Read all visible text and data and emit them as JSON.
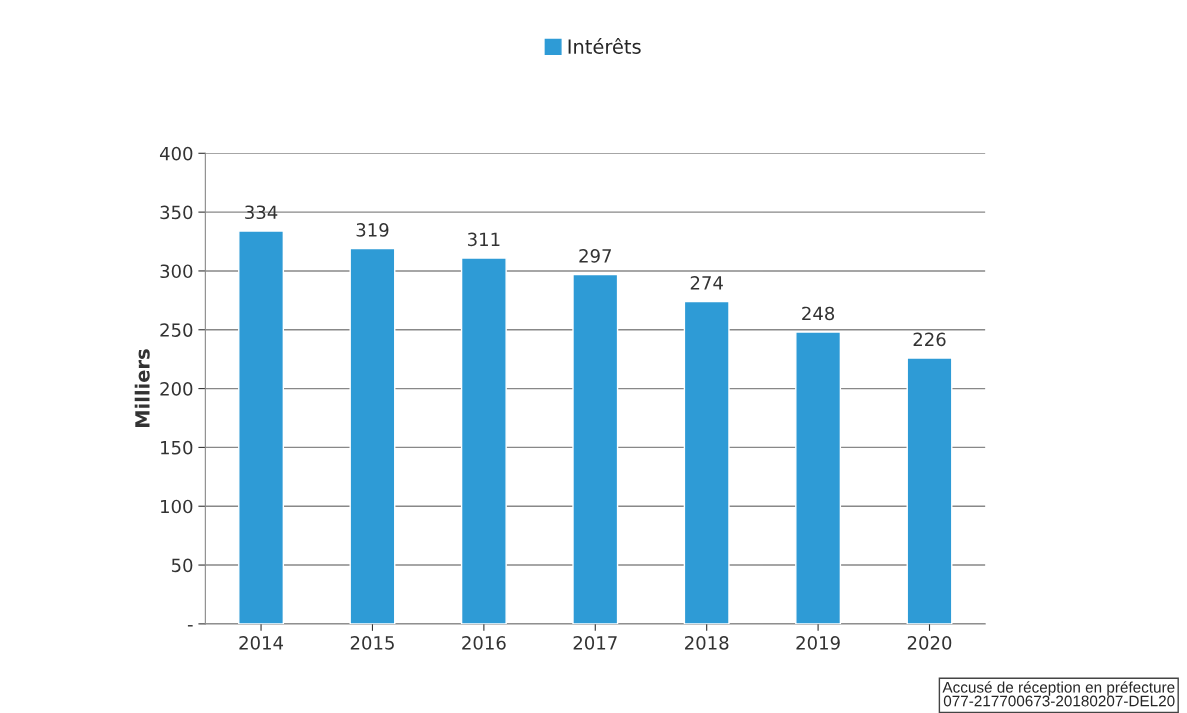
{
  "chart_data": {
    "type": "bar",
    "ylabel": "Milliers",
    "categories": [
      "2014",
      "2015",
      "2016",
      "2017",
      "2018",
      "2019",
      "2020"
    ],
    "series": [
      {
        "name": "Intérêts",
        "color": "#2e9bd6",
        "values": [
          334,
          319,
          311,
          297,
          274,
          248,
          226
        ]
      }
    ],
    "ylim": [
      0,
      400
    ],
    "yticks": [
      {
        "value": 0,
        "label": "-"
      },
      50,
      100,
      150,
      200,
      250,
      300,
      350,
      400
    ],
    "grid": "y",
    "legend": "top",
    "data_labels": true,
    "annotations": [
      "Accusé de réception en préfecture\n077-217700673-20180207-DEL20"
    ]
  }
}
